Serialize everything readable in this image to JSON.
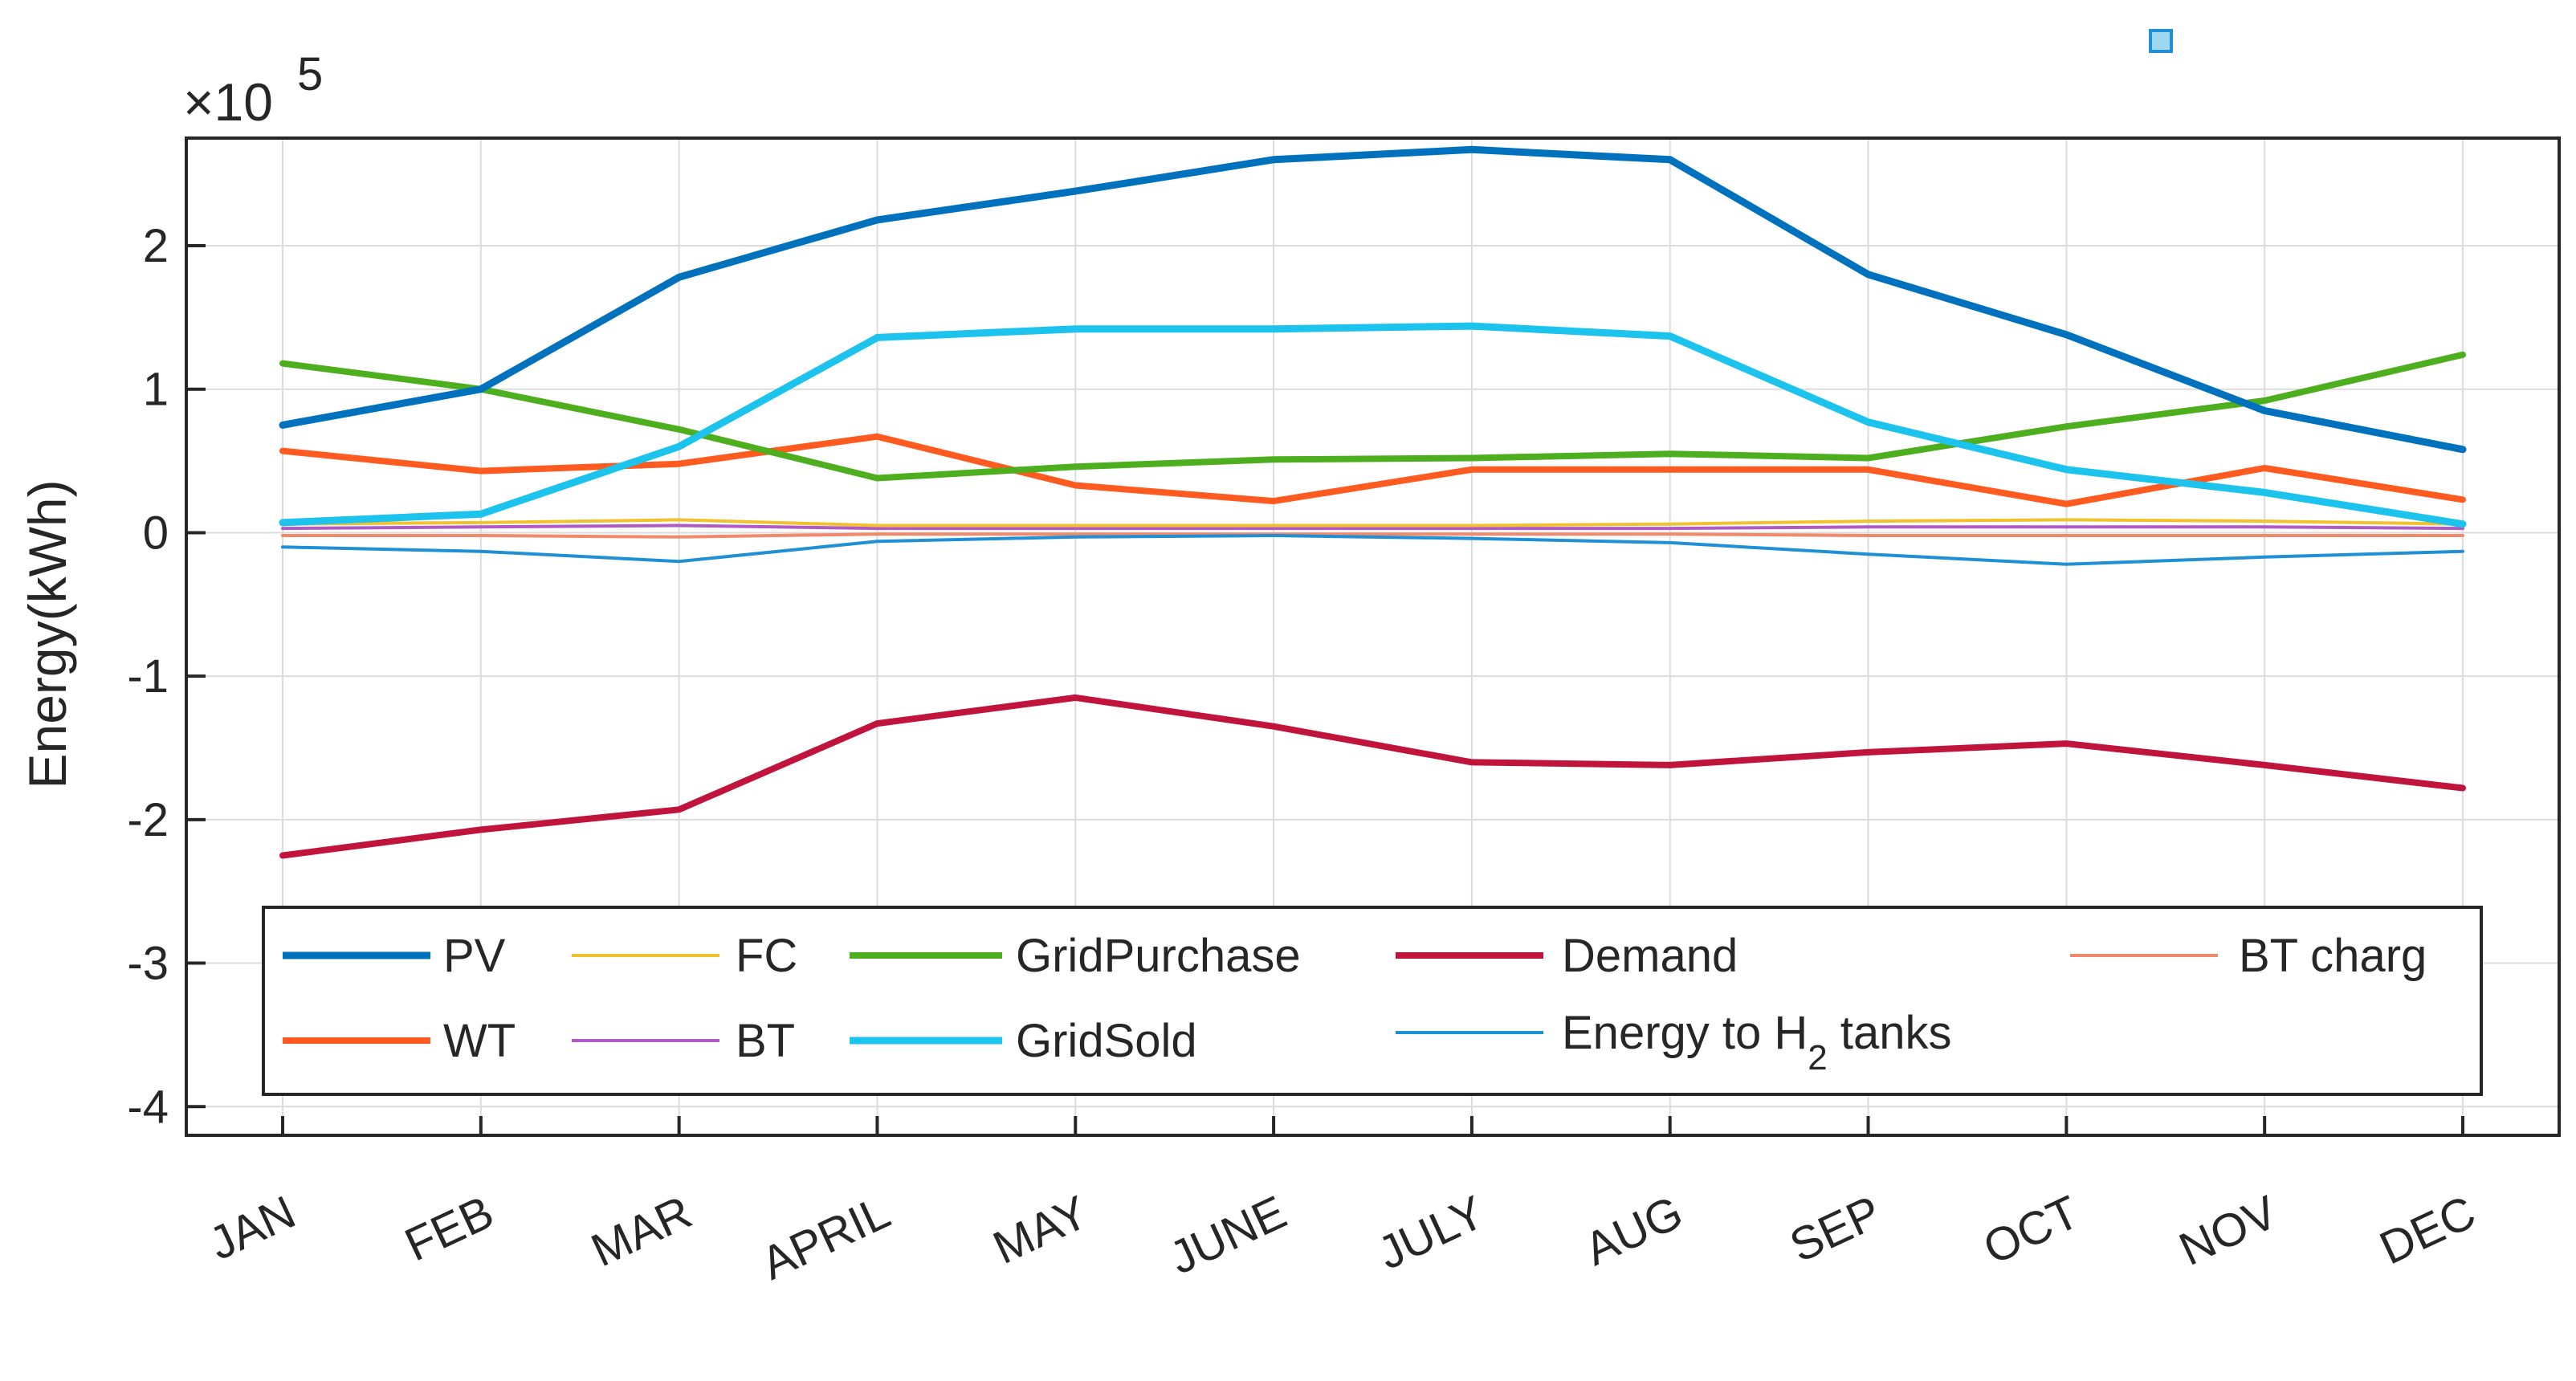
{
  "chart_data": {
    "type": "line",
    "title": "",
    "xlabel": "",
    "ylabel": "Energy(kWh)",
    "exponent_label": {
      "base": "×10",
      "power": "5"
    },
    "categories": [
      "JAN",
      "FEB",
      "MAR",
      "APRIL",
      "MAY",
      "JUNE",
      "JULY",
      "AUG",
      "SEP",
      "OCT",
      "NOV",
      "DEC"
    ],
    "ylim": [
      -4.2,
      2.75
    ],
    "yticks": [
      -4,
      -3,
      -2,
      -1,
      0,
      1,
      2
    ],
    "ytick_labels": [
      "-4",
      "-3",
      "-2",
      "-1",
      "0",
      "1",
      "2"
    ],
    "grid": true,
    "legend_position": "bottom",
    "series": [
      {
        "name": "PV",
        "color": "#0072BD",
        "values": [
          0.75,
          1.0,
          1.78,
          2.18,
          2.38,
          2.6,
          2.67,
          2.6,
          1.8,
          1.38,
          0.85,
          0.58
        ]
      },
      {
        "name": "WT",
        "color": "#FF5A1F",
        "values": [
          0.57,
          0.43,
          0.48,
          0.67,
          0.33,
          0.22,
          0.44,
          0.44,
          0.44,
          0.2,
          0.45,
          0.23
        ]
      },
      {
        "name": "FC",
        "color": "#F2C12E",
        "values": [
          0.06,
          0.07,
          0.09,
          0.05,
          0.05,
          0.05,
          0.05,
          0.06,
          0.08,
          0.09,
          0.08,
          0.06
        ]
      },
      {
        "name": "BT",
        "color": "#B05AC6",
        "values": [
          0.03,
          0.04,
          0.05,
          0.03,
          0.03,
          0.03,
          0.03,
          0.03,
          0.04,
          0.04,
          0.04,
          0.03
        ]
      },
      {
        "name": "GridPurchase",
        "color": "#4DAE1E",
        "values": [
          1.18,
          1.0,
          0.72,
          0.38,
          0.46,
          0.51,
          0.52,
          0.55,
          0.52,
          0.74,
          0.92,
          1.24
        ]
      },
      {
        "name": "GridSold",
        "color": "#1CC3EC",
        "values": [
          0.07,
          0.13,
          0.6,
          1.36,
          1.42,
          1.42,
          1.44,
          1.37,
          0.77,
          0.44,
          0.28,
          0.06
        ]
      },
      {
        "name": "Demand",
        "color": "#C0143C",
        "values": [
          -2.25,
          -2.07,
          -1.93,
          -1.33,
          -1.15,
          -1.35,
          -1.6,
          -1.62,
          -1.53,
          -1.47,
          -1.62,
          -1.78
        ]
      },
      {
        "name": "Energy to H2 tanks",
        "color": "#1F8FD6",
        "values": [
          -0.1,
          -0.13,
          -0.2,
          -0.06,
          -0.03,
          -0.02,
          -0.04,
          -0.07,
          -0.15,
          -0.22,
          -0.17,
          -0.13
        ]
      },
      {
        "name": "BT charg",
        "color": "#F08A6A",
        "values": [
          -0.02,
          -0.02,
          -0.03,
          -0.01,
          -0.01,
          -0.01,
          -0.01,
          -0.01,
          -0.02,
          -0.02,
          -0.02,
          -0.02
        ]
      }
    ],
    "legend": {
      "row1": [
        "PV",
        "FC",
        "GridPurchase",
        "Demand",
        "BT charg"
      ],
      "row2": [
        "WT",
        "BT",
        "GridSold"
      ],
      "h2_text": {
        "prefix": "Energy to H",
        "subscript": "2",
        "suffix": " tanks"
      }
    }
  }
}
